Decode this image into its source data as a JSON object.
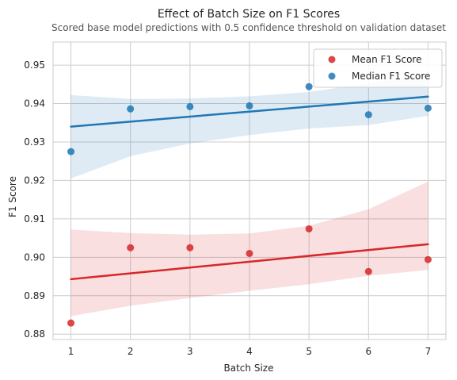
{
  "chart_data": {
    "type": "scatter",
    "title": "Effect of Batch Size on F1 Scores",
    "subtitle": "Scored base model predictions with 0.5 confidence threshold on validation dataset",
    "xlabel": "Batch Size",
    "ylabel": "F1 Score",
    "xlim": [
      0.7,
      7.3
    ],
    "ylim": [
      0.8786,
      0.956
    ],
    "xticks": [
      "1",
      "2",
      "3",
      "4",
      "5",
      "6",
      "7"
    ],
    "yticks": [
      "0.88",
      "0.89",
      "0.90",
      "0.91",
      "0.92",
      "0.93",
      "0.94",
      "0.95"
    ],
    "grid": true,
    "legend_position": "top-right",
    "series": [
      {
        "name": "Mean F1 Score",
        "color": "#d62728",
        "x": [
          1,
          2,
          3,
          4,
          5,
          6,
          7
        ],
        "y": [
          0.8829,
          0.9025,
          0.9025,
          0.901,
          0.9074,
          0.8963,
          0.8994
        ],
        "fit": {
          "start": 0.8943,
          "end": 0.9034
        },
        "ci": {
          "upper": [
            0.9072,
            0.9063,
            0.9059,
            0.9062,
            0.9082,
            0.9125,
            0.9197
          ],
          "lower": [
            0.8847,
            0.8874,
            0.8894,
            0.8913,
            0.893,
            0.8952,
            0.8967
          ]
        }
      },
      {
        "name": "Median F1 Score",
        "color": "#1f77b4",
        "x": [
          1,
          2,
          3,
          4,
          5,
          6,
          7
        ],
        "y": [
          0.9275,
          0.9386,
          0.9392,
          0.9394,
          0.9444,
          0.9371,
          0.9388
        ],
        "fit": {
          "start": 0.934,
          "end": 0.9418
        },
        "ci": {
          "upper": [
            0.9422,
            0.9412,
            0.9413,
            0.9419,
            0.943,
            0.9453,
            0.9481
          ],
          "lower": [
            0.9205,
            0.9263,
            0.9296,
            0.9318,
            0.9335,
            0.9344,
            0.9368
          ]
        }
      }
    ]
  }
}
